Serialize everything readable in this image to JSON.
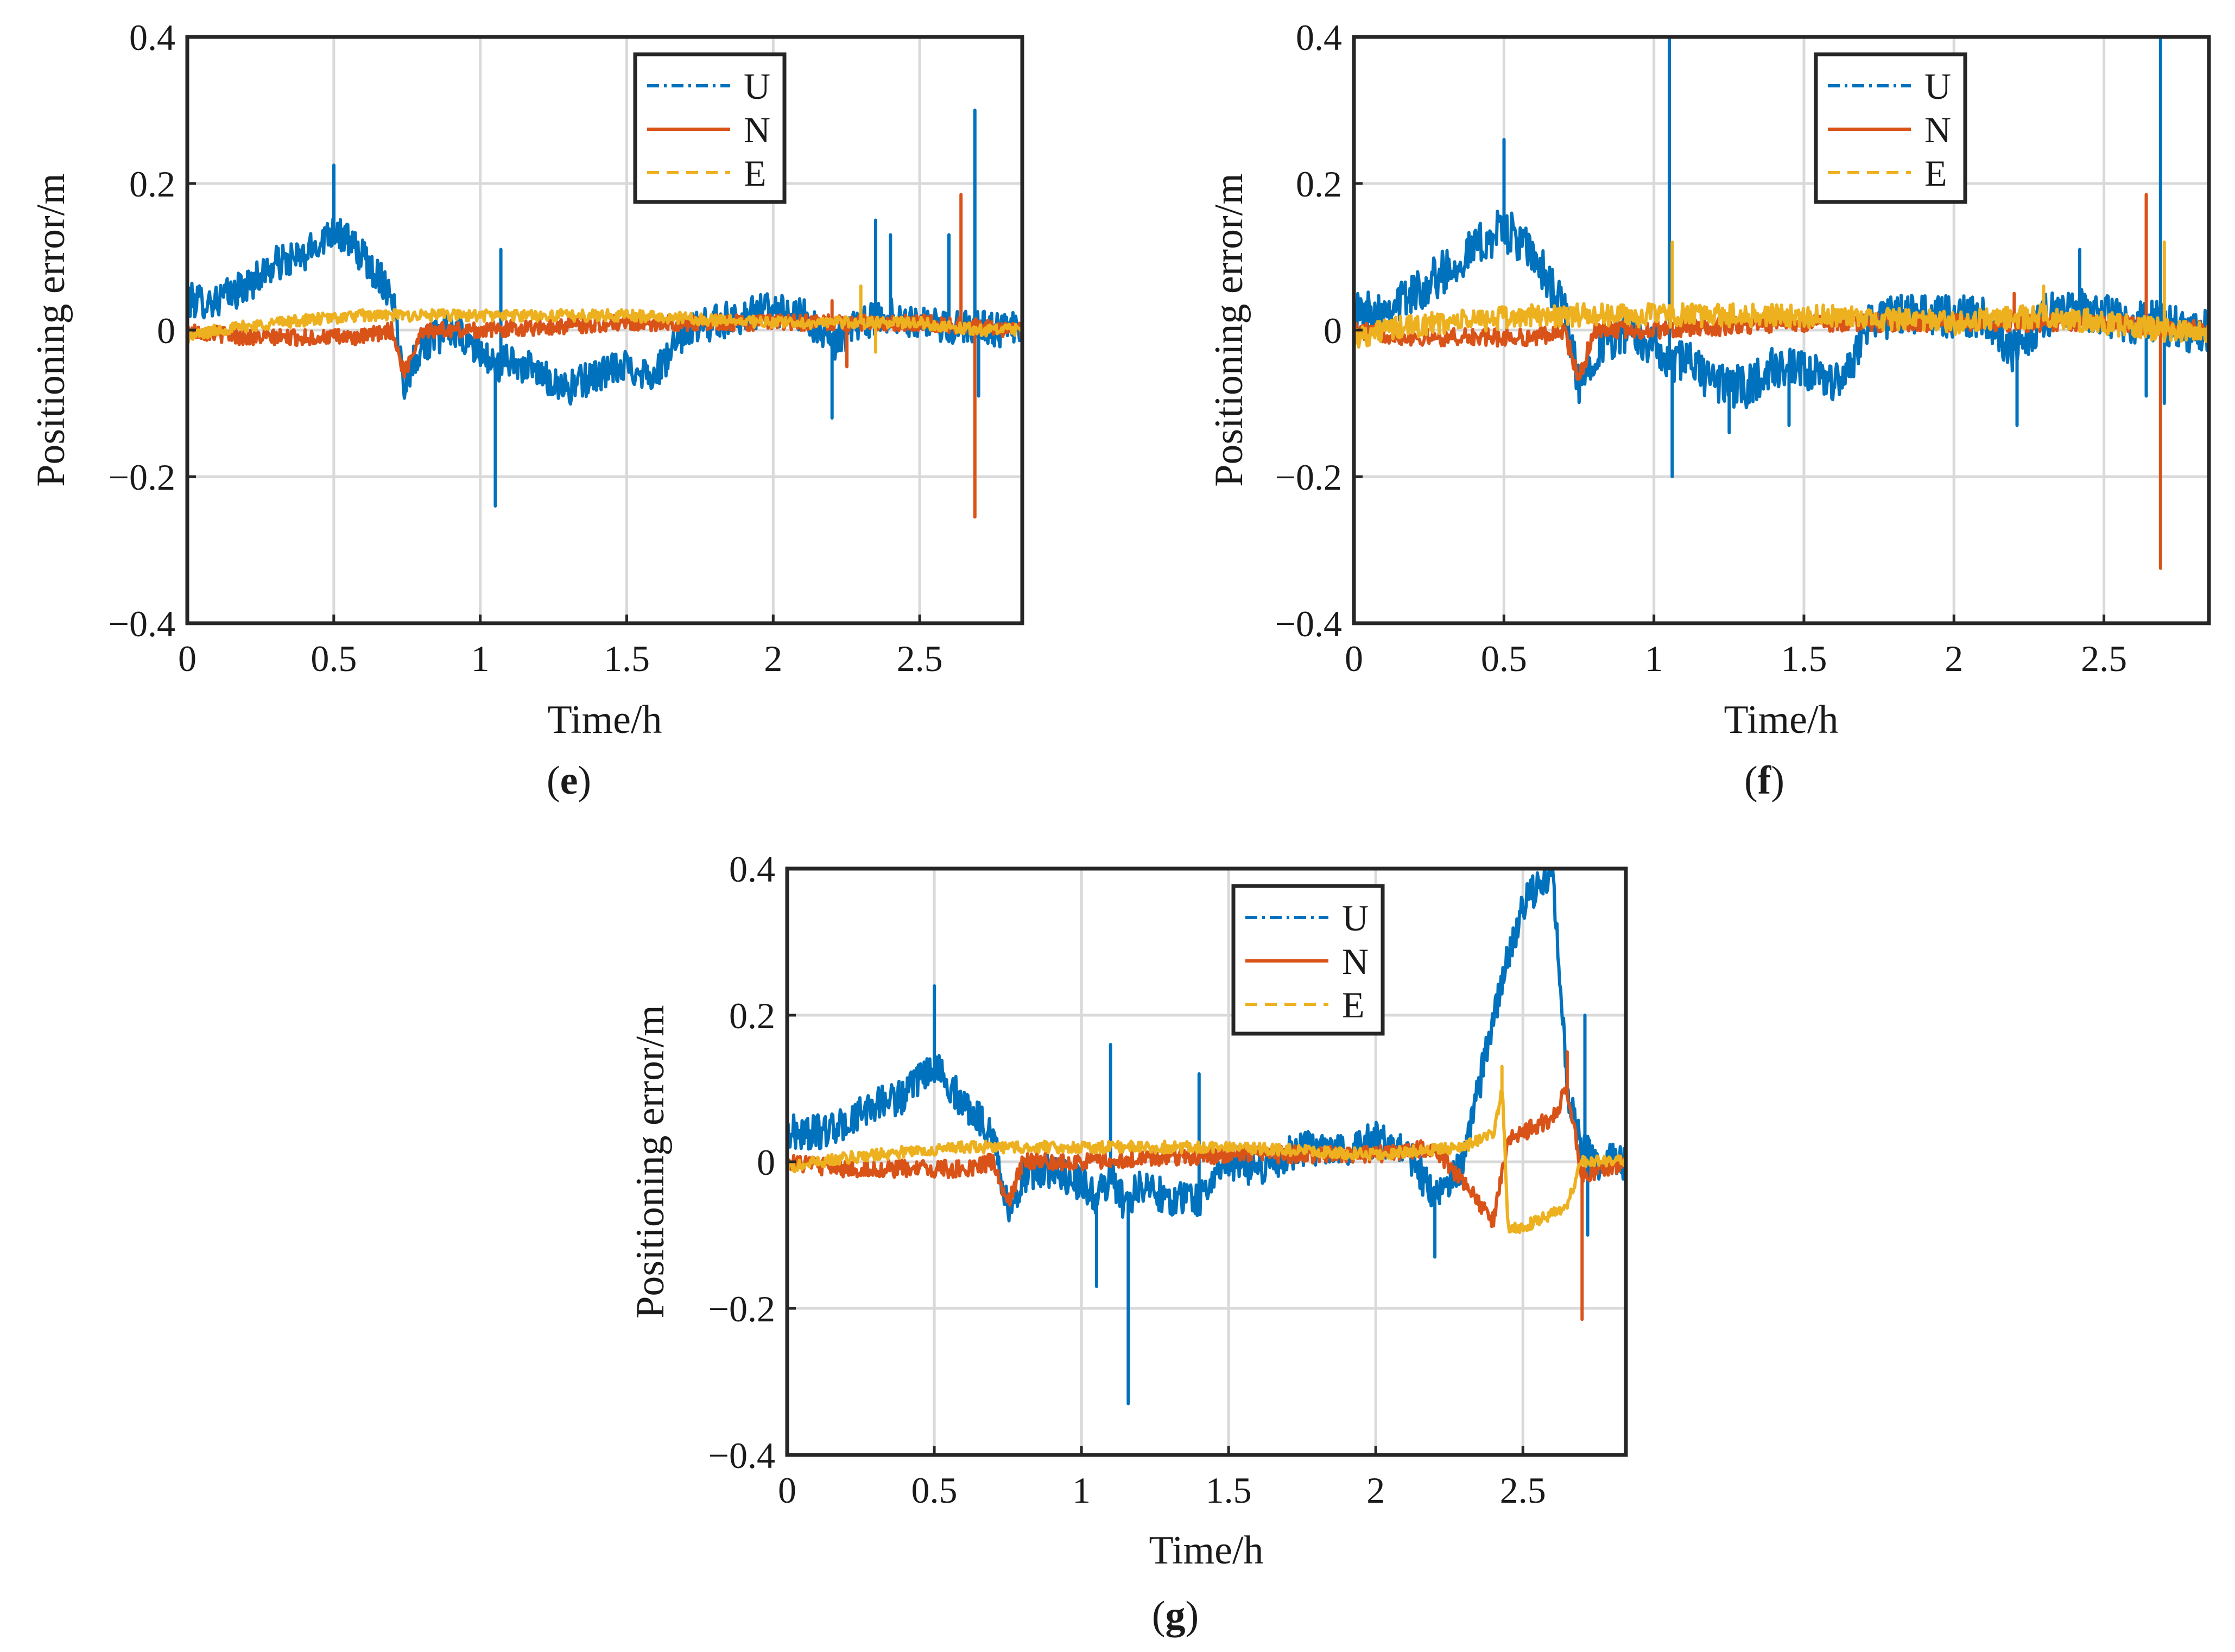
{
  "figure": {
    "colors": {
      "U": "#0072BD",
      "N": "#D95319",
      "E": "#EDB120",
      "grid": "#d9d9d9",
      "axis": "#262626"
    }
  },
  "chart_data": [
    {
      "type": "line",
      "panel_label": "e",
      "xlabel": "Time/h",
      "ylabel": "Positioning error/m",
      "xlim": [
        0,
        2.85
      ],
      "ylim": [
        -0.4,
        0.4
      ],
      "xticks": [
        "0",
        "0.5",
        "1",
        "1.5",
        "2",
        "2.5"
      ],
      "xtick_values": [
        0,
        0.5,
        1,
        1.5,
        2,
        2.5
      ],
      "yticks": [
        "0.4",
        "0.2",
        "0",
        "−0.2",
        "−0.4"
      ],
      "ytick_values": [
        0.4,
        0.2,
        0,
        -0.2,
        -0.4
      ],
      "grid": true,
      "legend": {
        "placement": "top-center",
        "entries": [
          "U",
          "N",
          "E"
        ]
      },
      "series": [
        {
          "name": "U",
          "style": "dash-dot",
          "color": "#0072BD",
          "noise": 0.024,
          "x": [
            0,
            0.1,
            0.2,
            0.3,
            0.4,
            0.5,
            0.6,
            0.7,
            0.74,
            0.8,
            0.9,
            1.0,
            1.05,
            1.1,
            1.2,
            1.3,
            1.4,
            1.5,
            1.6,
            1.7,
            1.8,
            1.9,
            2.0,
            2.1,
            2.2,
            2.3,
            2.4,
            2.5,
            2.6,
            2.7,
            2.75,
            2.85
          ],
          "y": [
            0.04,
            0.04,
            0.06,
            0.09,
            0.1,
            0.14,
            0.1,
            0.05,
            -0.07,
            -0.02,
            0.0,
            -0.03,
            -0.05,
            -0.04,
            -0.06,
            -0.08,
            -0.06,
            -0.05,
            -0.06,
            0.0,
            0.01,
            0.02,
            0.03,
            0.02,
            -0.02,
            0.01,
            0.02,
            0.01,
            0.0,
            0.01,
            0.0,
            0.0
          ],
          "spikes": [
            [
              0.5,
              0.225
            ],
            [
              1.05,
              -0.24
            ],
            [
              1.07,
              0.11
            ],
            [
              2.2,
              -0.12
            ],
            [
              2.35,
              0.15
            ],
            [
              2.4,
              0.13
            ],
            [
              2.6,
              0.13
            ],
            [
              2.69,
              0.3
            ],
            [
              2.7,
              -0.09
            ]
          ]
        },
        {
          "name": "N",
          "style": "solid",
          "color": "#D95319",
          "noise": 0.011,
          "x": [
            0,
            0.2,
            0.4,
            0.6,
            0.7,
            0.74,
            0.8,
            1.0,
            1.5,
            2.0,
            2.5,
            2.85
          ],
          "y": [
            0.0,
            -0.01,
            -0.01,
            -0.01,
            0.0,
            -0.06,
            0.0,
            0.0,
            0.01,
            0.01,
            0.01,
            0.0
          ],
          "spikes": [
            [
              2.64,
              0.185
            ],
            [
              2.69,
              -0.255
            ],
            [
              2.2,
              0.04
            ],
            [
              2.25,
              -0.05
            ]
          ]
        },
        {
          "name": "E",
          "style": "dashed",
          "color": "#EDB120",
          "noise": 0.008,
          "x": [
            0,
            0.1,
            0.3,
            0.6,
            1.0,
            1.5,
            2.0,
            2.5,
            2.7,
            2.85
          ],
          "y": [
            -0.01,
            0.0,
            0.01,
            0.02,
            0.02,
            0.02,
            0.01,
            0.01,
            0.0,
            0.0
          ],
          "spikes": [
            [
              2.3,
              0.06
            ],
            [
              2.35,
              -0.03
            ]
          ]
        }
      ]
    },
    {
      "type": "line",
      "panel_label": "f",
      "xlabel": "Time/h",
      "ylabel": "Positioning error/m",
      "xlim": [
        0,
        2.85
      ],
      "ylim": [
        -0.4,
        0.4
      ],
      "xticks": [
        "0",
        "0.5",
        "1",
        "1.5",
        "2",
        "2.5"
      ],
      "xtick_values": [
        0,
        0.5,
        1,
        1.5,
        2,
        2.5
      ],
      "yticks": [
        "0.4",
        "0.2",
        "0",
        "−0.2",
        "−0.4"
      ],
      "ytick_values": [
        0.4,
        0.2,
        0,
        -0.2,
        -0.4
      ],
      "grid": true,
      "legend": {
        "placement": "top-right",
        "entries": [
          "U",
          "N",
          "E"
        ]
      },
      "series": [
        {
          "name": "U",
          "style": "dash-dot",
          "color": "#0072BD",
          "noise": 0.03,
          "x": [
            0,
            0.1,
            0.2,
            0.3,
            0.4,
            0.5,
            0.6,
            0.7,
            0.75,
            0.8,
            0.9,
            1.0,
            1.05,
            1.1,
            1.2,
            1.3,
            1.4,
            1.5,
            1.6,
            1.65,
            1.7,
            1.8,
            1.9,
            2.0,
            2.1,
            2.2,
            2.3,
            2.4,
            2.5,
            2.6,
            2.7,
            2.75,
            2.85
          ],
          "y": [
            0.02,
            0.03,
            0.05,
            0.08,
            0.11,
            0.14,
            0.1,
            0.03,
            -0.08,
            -0.03,
            0.0,
            -0.02,
            -0.05,
            -0.04,
            -0.07,
            -0.08,
            -0.05,
            -0.06,
            -0.07,
            -0.06,
            0.01,
            0.02,
            0.02,
            0.02,
            0.02,
            -0.03,
            0.02,
            0.03,
            0.02,
            0.01,
            0.01,
            0.0,
            0.0
          ],
          "spikes": [
            [
              0.5,
              0.26
            ],
            [
              1.05,
              0.4
            ],
            [
              1.06,
              -0.2
            ],
            [
              1.25,
              -0.14
            ],
            [
              1.45,
              -0.13
            ],
            [
              2.21,
              -0.13
            ],
            [
              2.42,
              0.11
            ],
            [
              2.64,
              -0.09
            ],
            [
              2.69,
              0.4
            ],
            [
              2.7,
              -0.1
            ]
          ]
        },
        {
          "name": "N",
          "style": "solid",
          "color": "#D95319",
          "noise": 0.012,
          "x": [
            0,
            0.2,
            0.4,
            0.6,
            0.7,
            0.75,
            0.8,
            1.0,
            1.5,
            2.0,
            2.5,
            2.85
          ],
          "y": [
            0.0,
            -0.01,
            -0.01,
            -0.01,
            0.0,
            -0.07,
            0.0,
            0.0,
            0.01,
            0.01,
            0.01,
            0.0
          ],
          "spikes": [
            [
              2.64,
              0.185
            ],
            [
              2.69,
              -0.325
            ],
            [
              2.2,
              0.05
            ]
          ]
        },
        {
          "name": "E",
          "style": "dashed",
          "color": "#EDB120",
          "noise": 0.016,
          "x": [
            0,
            0.1,
            0.3,
            0.6,
            1.0,
            1.5,
            2.0,
            2.3,
            2.5,
            2.7,
            2.85
          ],
          "y": [
            -0.01,
            0.0,
            0.01,
            0.02,
            0.02,
            0.02,
            0.01,
            0.02,
            0.01,
            0.0,
            0.0
          ],
          "spikes": [
            [
              1.06,
              0.12
            ],
            [
              2.3,
              0.06
            ],
            [
              2.7,
              0.12
            ]
          ]
        }
      ]
    },
    {
      "type": "line",
      "panel_label": "g",
      "xlabel": "Time/h",
      "ylabel": "Positioning error/m",
      "xlim": [
        0,
        2.85
      ],
      "ylim": [
        -0.4,
        0.4
      ],
      "xticks": [
        "0",
        "0.5",
        "1",
        "1.5",
        "2",
        "2.5"
      ],
      "xtick_values": [
        0,
        0.5,
        1,
        1.5,
        2,
        2.5
      ],
      "yticks": [
        "0.4",
        "0.2",
        "0",
        "−0.2",
        "−0.4"
      ],
      "ytick_values": [
        0.4,
        0.2,
        0,
        -0.2,
        -0.4
      ],
      "grid": true,
      "legend": {
        "placement": "top-center",
        "entries": [
          "U",
          "N",
          "E"
        ]
      },
      "series": [
        {
          "name": "U",
          "style": "dash-dot",
          "color": "#0072BD",
          "noise": 0.024,
          "x": [
            0,
            0.1,
            0.2,
            0.3,
            0.4,
            0.5,
            0.6,
            0.7,
            0.75,
            0.8,
            0.9,
            1.0,
            1.05,
            1.1,
            1.15,
            1.2,
            1.3,
            1.4,
            1.5,
            1.6,
            1.7,
            1.8,
            1.9,
            2.0,
            2.1,
            2.2,
            2.3,
            2.35,
            2.4,
            2.45,
            2.5,
            2.6,
            2.65,
            2.7,
            2.75,
            2.85
          ],
          "y": [
            0.04,
            0.04,
            0.05,
            0.08,
            0.09,
            0.13,
            0.08,
            0.04,
            -0.07,
            -0.02,
            -0.01,
            -0.03,
            -0.05,
            -0.02,
            -0.06,
            -0.03,
            -0.05,
            -0.05,
            0.0,
            -0.01,
            0.01,
            0.02,
            0.02,
            0.03,
            0.02,
            -0.05,
            0.0,
            0.1,
            0.2,
            0.28,
            0.35,
            0.4,
            0.1,
            0.02,
            0.0,
            0.0
          ],
          "spikes": [
            [
              0.5,
              0.24
            ],
            [
              1.05,
              -0.17
            ],
            [
              1.1,
              0.16
            ],
            [
              1.16,
              -0.33
            ],
            [
              1.4,
              0.12
            ],
            [
              2.2,
              -0.13
            ],
            [
              2.71,
              0.2
            ],
            [
              2.72,
              -0.1
            ]
          ]
        },
        {
          "name": "N",
          "style": "solid",
          "color": "#D95319",
          "noise": 0.012,
          "x": [
            0,
            0.2,
            0.4,
            0.6,
            0.7,
            0.75,
            0.8,
            1.0,
            1.5,
            2.0,
            2.2,
            2.3,
            2.4,
            2.45,
            2.5,
            2.6,
            2.65,
            2.7,
            2.85
          ],
          "y": [
            0.0,
            -0.01,
            -0.01,
            -0.01,
            0.0,
            -0.06,
            0.0,
            0.0,
            0.01,
            0.01,
            0.02,
            -0.03,
            -0.08,
            0.03,
            0.04,
            0.06,
            0.1,
            -0.02,
            0.0
          ],
          "spikes": [
            [
              2.65,
              0.15
            ],
            [
              2.7,
              -0.215
            ]
          ]
        },
        {
          "name": "E",
          "style": "dashed",
          "color": "#EDB120",
          "noise": 0.008,
          "x": [
            0,
            0.1,
            0.3,
            0.6,
            1.0,
            1.5,
            2.0,
            2.3,
            2.4,
            2.43,
            2.45,
            2.5,
            2.6,
            2.65,
            2.7,
            2.85
          ],
          "y": [
            -0.01,
            0.0,
            0.01,
            0.02,
            0.02,
            0.02,
            0.01,
            0.02,
            0.04,
            0.1,
            -0.09,
            -0.09,
            -0.07,
            -0.06,
            0.0,
            0.0
          ],
          "spikes": [
            [
              2.43,
              0.13
            ]
          ]
        }
      ]
    }
  ]
}
